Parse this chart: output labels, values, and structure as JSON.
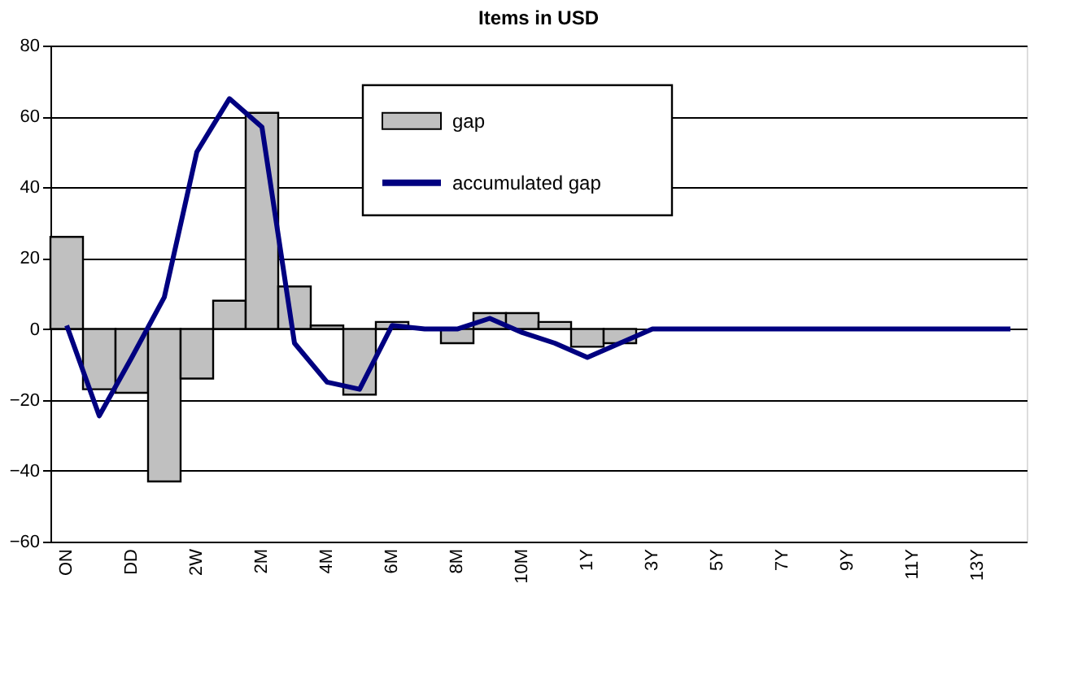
{
  "chart_data": {
    "type": "bar",
    "title": "Items in USD",
    "categories": [
      "ON",
      null,
      "DD",
      null,
      "2W",
      null,
      "2M",
      null,
      "4M",
      null,
      "6M",
      null,
      "8M",
      null,
      "10M",
      null,
      "1Y",
      null,
      "3Y",
      null,
      "5Y",
      null,
      "7Y",
      null,
      "9Y",
      null,
      "11Y",
      null,
      "13Y",
      null
    ],
    "series": [
      {
        "name": "gap",
        "color": "#c0c0c0",
        "values": [
          26,
          -17,
          -18,
          -43,
          -14,
          8,
          61,
          12,
          1,
          -18.5,
          2,
          0,
          -4,
          4.5,
          4.5,
          2,
          -5,
          -4,
          0,
          0,
          0,
          0,
          0,
          0,
          0,
          0,
          0,
          0,
          0,
          0
        ]
      },
      {
        "name": "accumulated gap",
        "type": "line",
        "color": "#000080",
        "values": [
          1,
          -24.5,
          -8,
          9,
          50,
          65,
          57,
          -4,
          -15,
          -17,
          1,
          0,
          0,
          3,
          -1,
          -4,
          -8,
          -4,
          0,
          0,
          0,
          0,
          0,
          0,
          0,
          0,
          0,
          0,
          0,
          0
        ]
      }
    ],
    "ylim": [
      -60,
      80
    ],
    "yticks": [
      -60,
      -40,
      -20,
      0,
      20,
      40,
      60,
      80
    ],
    "grid": "y",
    "legend": "top"
  }
}
